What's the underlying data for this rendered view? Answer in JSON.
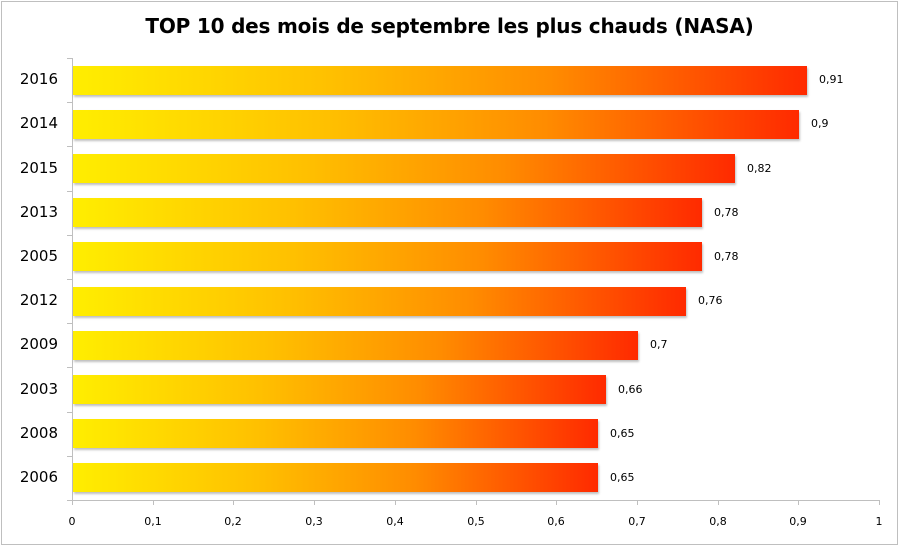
{
  "chart_data": {
    "type": "bar",
    "orientation": "horizontal",
    "title": "TOP 10 des mois de septembre les plus chauds (NASA)",
    "categories": [
      "2016",
      "2014",
      "2015",
      "2013",
      "2005",
      "2012",
      "2009",
      "2003",
      "2008",
      "2006"
    ],
    "values": [
      0.91,
      0.9,
      0.82,
      0.78,
      0.78,
      0.76,
      0.7,
      0.66,
      0.65,
      0.65
    ],
    "value_labels": [
      "0,91",
      "0,9",
      "0,82",
      "0,78",
      "0,78",
      "0,76",
      "0,7",
      "0,66",
      "0,65",
      "0,65"
    ],
    "xlabel": "",
    "ylabel": "",
    "xlim": [
      0,
      1
    ],
    "x_ticks": [
      "0",
      "0,1",
      "0,2",
      "0,3",
      "0,4",
      "0,5",
      "0,6",
      "0,7",
      "0,8",
      "0,9",
      "1"
    ],
    "grid": false,
    "legend": null,
    "bar_gradient": [
      "#ffee00",
      "#ffc000",
      "#ff8c00",
      "#ff2a00"
    ]
  }
}
